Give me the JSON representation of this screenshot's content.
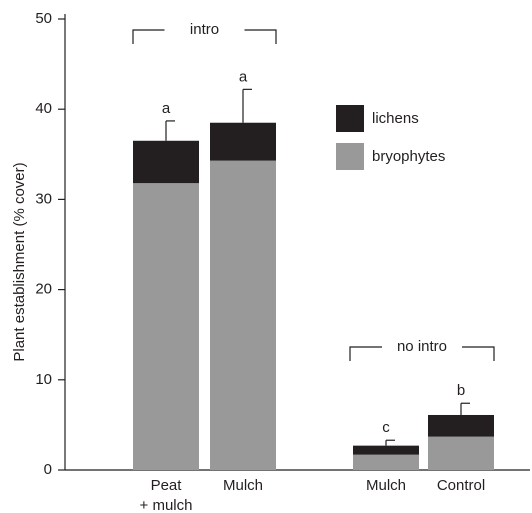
{
  "chart_data": {
    "type": "stacked_bar",
    "y_label": "Plant establishment (% cover)",
    "categories": [
      "Peat\n+ mulch",
      "Mulch",
      "Mulch",
      "Control"
    ],
    "series": [
      {
        "name": "bryophytes",
        "color": "#999999",
        "values": [
          31.8,
          34.3,
          1.7,
          3.7
        ]
      },
      {
        "name": "lichens",
        "color": "#231f20",
        "values": [
          4.7,
          4.2,
          1.0,
          2.4
        ]
      }
    ],
    "errors": [
      2.2,
      3.7,
      0.6,
      1.3
    ],
    "letters": [
      "a",
      "a",
      "c",
      "b"
    ],
    "annotations": [
      "intro",
      "no intro"
    ],
    "ylim": [
      0,
      50
    ],
    "yticks": [
      0,
      10,
      20,
      30,
      40,
      50
    ]
  }
}
